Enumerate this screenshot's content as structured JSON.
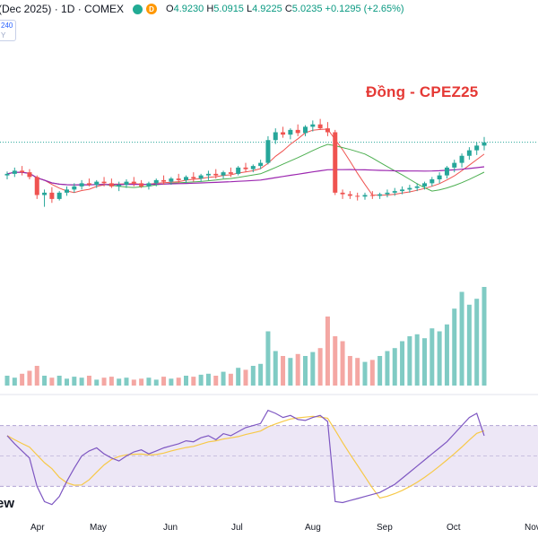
{
  "header": {
    "symbol_title": "(Dec 2025) · 1D · COMEX",
    "market_status_icon": "green-dot-icon",
    "data_source_icon": "delayed-d-icon",
    "data_source_letter": "D",
    "ohlc": {
      "open_label": "O",
      "open": "4.9230",
      "high_label": "H",
      "high": "5.0915",
      "low_label": "L",
      "low": "4.9225",
      "close_label": "C",
      "close": "5.0235",
      "change": "+0.1295 (+2.65%)"
    }
  },
  "badge": {
    "line1": "240",
    "line2": "Y"
  },
  "chart_title": "Đồng - CPEZ25",
  "bottom_label": "ew",
  "colors": {
    "up": "#26a69a",
    "down": "#ef5350",
    "ma_red": "#ef5350",
    "ma_green": "#4caf50",
    "ma_purple": "#9c27b0",
    "osc_line": "#7e57c2",
    "osc_signal": "#f7c948",
    "osc_band": "#ede7f6"
  },
  "chart_data": {
    "type": "candlestick",
    "x_ticks": [
      "Apr",
      "May",
      "Jun",
      "Jul",
      "Aug",
      "Sep",
      "Oct",
      "Nov"
    ],
    "last_close": 5.0235,
    "price_candles": [
      [
        4.6,
        4.65,
        4.55,
        4.62
      ],
      [
        4.62,
        4.7,
        4.58,
        4.66
      ],
      [
        4.66,
        4.72,
        4.6,
        4.64
      ],
      [
        4.64,
        4.68,
        4.55,
        4.58
      ],
      [
        4.58,
        4.6,
        4.3,
        4.35
      ],
      [
        4.35,
        4.42,
        4.2,
        4.38
      ],
      [
        4.38,
        4.45,
        4.25,
        4.3
      ],
      [
        4.3,
        4.4,
        4.28,
        4.38
      ],
      [
        4.38,
        4.46,
        4.34,
        4.42
      ],
      [
        4.42,
        4.5,
        4.38,
        4.46
      ],
      [
        4.46,
        4.54,
        4.42,
        4.5
      ],
      [
        4.5,
        4.56,
        4.46,
        4.48
      ],
      [
        4.48,
        4.54,
        4.44,
        4.52
      ],
      [
        4.52,
        4.58,
        4.46,
        4.5
      ],
      [
        4.5,
        4.56,
        4.44,
        4.46
      ],
      [
        4.46,
        4.52,
        4.4,
        4.48
      ],
      [
        4.48,
        4.55,
        4.44,
        4.52
      ],
      [
        4.52,
        4.58,
        4.46,
        4.5
      ],
      [
        4.5,
        4.54,
        4.44,
        4.46
      ],
      [
        4.46,
        4.52,
        4.42,
        4.5
      ],
      [
        4.5,
        4.56,
        4.46,
        4.54
      ],
      [
        4.54,
        4.6,
        4.48,
        4.52
      ],
      [
        4.52,
        4.58,
        4.48,
        4.56
      ],
      [
        4.56,
        4.62,
        4.5,
        4.54
      ],
      [
        4.54,
        4.6,
        4.5,
        4.58
      ],
      [
        4.58,
        4.64,
        4.52,
        4.56
      ],
      [
        4.56,
        4.62,
        4.52,
        4.6
      ],
      [
        4.6,
        4.66,
        4.54,
        4.62
      ],
      [
        4.62,
        4.68,
        4.56,
        4.6
      ],
      [
        4.6,
        4.66,
        4.56,
        4.64
      ],
      [
        4.64,
        4.7,
        4.58,
        4.62
      ],
      [
        4.62,
        4.72,
        4.6,
        4.7
      ],
      [
        4.7,
        4.76,
        4.64,
        4.68
      ],
      [
        4.68,
        4.74,
        4.64,
        4.72
      ],
      [
        4.72,
        4.8,
        4.68,
        4.76
      ],
      [
        4.76,
        5.1,
        4.74,
        5.05
      ],
      [
        5.05,
        5.2,
        5.0,
        5.15
      ],
      [
        5.15,
        5.22,
        5.08,
        5.12
      ],
      [
        5.12,
        5.2,
        5.06,
        5.18
      ],
      [
        5.18,
        5.25,
        5.1,
        5.14
      ],
      [
        5.14,
        5.24,
        5.1,
        5.22
      ],
      [
        5.22,
        5.3,
        5.16,
        5.25
      ],
      [
        5.25,
        5.32,
        5.18,
        5.2
      ],
      [
        5.2,
        5.28,
        5.1,
        5.15
      ],
      [
        5.15,
        5.18,
        4.35,
        4.38
      ],
      [
        4.38,
        4.42,
        4.3,
        4.36
      ],
      [
        4.36,
        4.4,
        4.3,
        4.34
      ],
      [
        4.34,
        4.38,
        4.28,
        4.33
      ],
      [
        4.33,
        4.38,
        4.29,
        4.35
      ],
      [
        4.35,
        4.4,
        4.3,
        4.34
      ],
      [
        4.34,
        4.38,
        4.3,
        4.36
      ],
      [
        4.36,
        4.42,
        4.32,
        4.38
      ],
      [
        4.38,
        4.44,
        4.34,
        4.4
      ],
      [
        4.4,
        4.46,
        4.36,
        4.42
      ],
      [
        4.42,
        4.48,
        4.38,
        4.44
      ],
      [
        4.44,
        4.5,
        4.4,
        4.46
      ],
      [
        4.46,
        4.52,
        4.42,
        4.5
      ],
      [
        4.5,
        4.58,
        4.46,
        4.55
      ],
      [
        4.55,
        4.64,
        4.5,
        4.6
      ],
      [
        4.6,
        4.72,
        4.56,
        4.7
      ],
      [
        4.7,
        4.8,
        4.64,
        4.76
      ],
      [
        4.76,
        4.88,
        4.7,
        4.85
      ],
      [
        4.85,
        4.96,
        4.8,
        4.92
      ],
      [
        4.92,
        5.02,
        4.86,
        4.98
      ],
      [
        4.98,
        5.09,
        4.92,
        5.02
      ]
    ],
    "volume_relative": [
      0.1,
      0.08,
      0.12,
      0.15,
      0.2,
      0.1,
      0.08,
      0.1,
      0.07,
      0.09,
      0.08,
      0.1,
      0.06,
      0.08,
      0.09,
      0.07,
      0.08,
      0.06,
      0.07,
      0.08,
      0.06,
      0.09,
      0.07,
      0.08,
      0.1,
      0.09,
      0.11,
      0.12,
      0.1,
      0.14,
      0.12,
      0.18,
      0.16,
      0.2,
      0.22,
      0.55,
      0.35,
      0.3,
      0.28,
      0.32,
      0.3,
      0.34,
      0.38,
      0.7,
      0.5,
      0.45,
      0.3,
      0.28,
      0.24,
      0.26,
      0.3,
      0.35,
      0.38,
      0.45,
      0.5,
      0.52,
      0.48,
      0.58,
      0.55,
      0.62,
      0.78,
      0.95,
      0.82,
      0.88,
      1.0
    ],
    "oscillator": [
      70,
      62,
      55,
      48,
      20,
      5,
      2,
      10,
      25,
      38,
      50,
      55,
      58,
      52,
      48,
      45,
      50,
      54,
      56,
      52,
      55,
      58,
      60,
      62,
      65,
      64,
      68,
      70,
      66,
      72,
      70,
      74,
      78,
      80,
      82,
      95,
      92,
      88,
      90,
      86,
      85,
      88,
      90,
      84,
      5,
      4,
      6,
      8,
      10,
      12,
      14,
      18,
      22,
      28,
      34,
      40,
      46,
      52,
      58,
      64,
      72,
      80,
      88,
      92,
      70
    ]
  }
}
